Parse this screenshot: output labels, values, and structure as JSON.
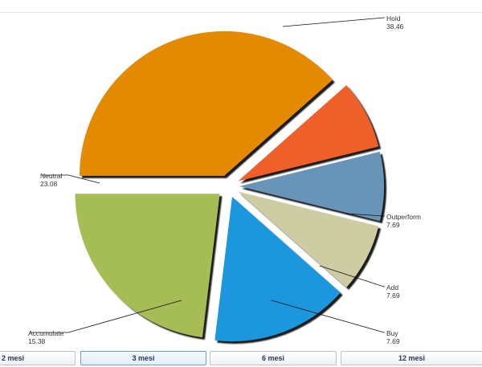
{
  "chart_data": {
    "type": "pie",
    "exploded": true,
    "slices": [
      {
        "label": "Hold",
        "value": 38.46,
        "value_text": "38.46",
        "color": "#e38a00"
      },
      {
        "label": "Outperform",
        "value": 7.69,
        "value_text": "7.69",
        "color": "#ef5e2b"
      },
      {
        "label": "Add",
        "value": 7.69,
        "value_text": "7.69",
        "color": "#6894b7"
      },
      {
        "label": "Buy",
        "value": 7.69,
        "value_text": "7.69",
        "color": "#cecca3"
      },
      {
        "label": "Accumulate",
        "value": 15.38,
        "value_text": "15.38",
        "color": "#1c96dc"
      },
      {
        "label": "Neutral",
        "value": 23.08,
        "value_text": "23.08",
        "color": "#a6bd56"
      }
    ]
  },
  "period_tabs": [
    {
      "label": "2 mesi",
      "active": false
    },
    {
      "label": "3 mesi",
      "active": true
    },
    {
      "label": "6 mesi",
      "active": false
    },
    {
      "label": "12 mesi",
      "active": false
    }
  ]
}
